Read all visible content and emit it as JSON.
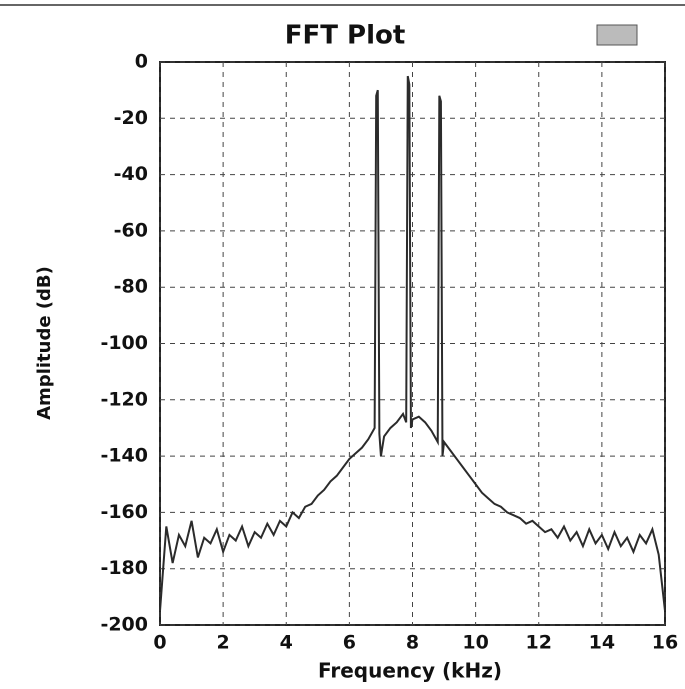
{
  "chart_data": {
    "type": "line",
    "title": "FFT Plot",
    "x_label": "Frequency (kHz)",
    "y_label": "Amplitude (dB)",
    "x": [
      0,
      0.2,
      0.4,
      0.6,
      0.8,
      1.0,
      1.2,
      1.4,
      1.6,
      1.8,
      2.0,
      2.2,
      2.4,
      2.6,
      2.8,
      3.0,
      3.2,
      3.4,
      3.6,
      3.8,
      4.0,
      4.2,
      4.4,
      4.6,
      4.8,
      5.0,
      5.2,
      5.4,
      5.6,
      5.8,
      6.0,
      6.2,
      6.4,
      6.6,
      6.8,
      6.85,
      6.9,
      6.95,
      7.0,
      7.1,
      7.3,
      7.5,
      7.7,
      7.8,
      7.85,
      7.9,
      7.95,
      8.0,
      8.2,
      8.4,
      8.6,
      8.8,
      8.85,
      8.9,
      8.95,
      9.0,
      9.2,
      9.4,
      9.6,
      9.8,
      10.0,
      10.2,
      10.4,
      10.6,
      10.8,
      11.0,
      11.2,
      11.4,
      11.6,
      11.8,
      12.0,
      12.2,
      12.4,
      12.6,
      12.8,
      13.0,
      13.2,
      13.4,
      13.6,
      13.8,
      14.0,
      14.2,
      14.4,
      14.6,
      14.8,
      15.0,
      15.2,
      15.4,
      15.6,
      15.8,
      16.0
    ],
    "values": [
      -195,
      -165,
      -178,
      -168,
      -172,
      -163,
      -176,
      -169,
      -171,
      -166,
      -174,
      -168,
      -170,
      -165,
      -172,
      -167,
      -169,
      -164,
      -168,
      -163,
      -165,
      -160,
      -162,
      -158,
      -157,
      -154,
      -152,
      -149,
      -147,
      -144,
      -141,
      -139,
      -137,
      -134,
      -130,
      -12,
      -10,
      -132,
      -140,
      -133,
      -130,
      -128,
      -125,
      -128,
      -5,
      -8,
      -130,
      -127,
      -126,
      -128,
      -131,
      -135,
      -12,
      -14,
      -140,
      -135,
      -138,
      -141,
      -144,
      -147,
      -150,
      -153,
      -155,
      -157,
      -158,
      -160,
      -161,
      -162,
      -164,
      -163,
      -165,
      -167,
      -166,
      -169,
      -165,
      -170,
      -167,
      -172,
      -166,
      -171,
      -168,
      -173,
      -167,
      -172,
      -169,
      -174,
      -168,
      -171,
      -166,
      -175,
      -195
    ],
    "color": "#2b2b2b",
    "xlim": [
      0,
      16
    ],
    "xticks": [
      0,
      2,
      4,
      6,
      8,
      10,
      12,
      14,
      16
    ],
    "ylim": [
      -200,
      0
    ],
    "yticks": [
      0,
      -20,
      -40,
      -60,
      -80,
      -100,
      -120,
      -140,
      -160,
      -180,
      -200
    ],
    "grid": true
  }
}
